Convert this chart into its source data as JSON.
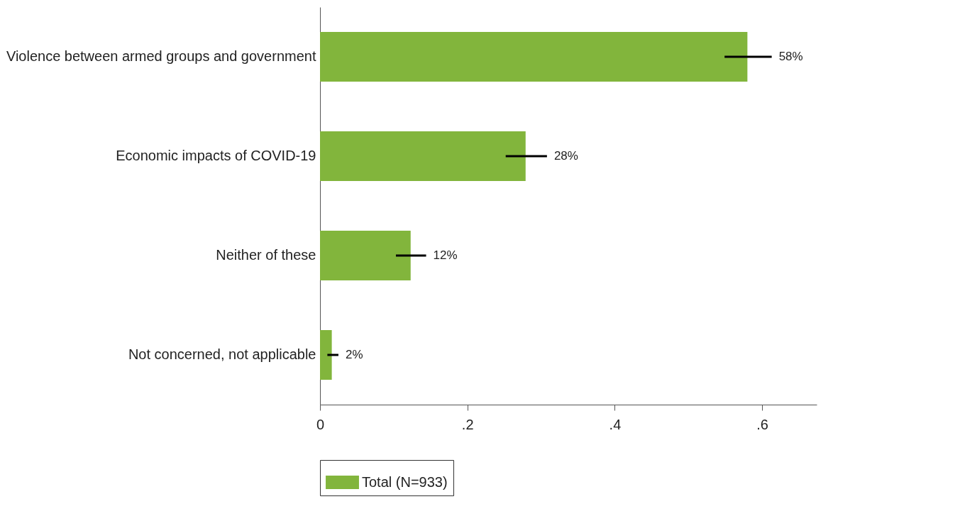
{
  "chart_data": {
    "type": "bar",
    "orientation": "horizontal",
    "categories": [
      "Violence between armed groups and government",
      "Economic impacts of COVID-19",
      "Neither of these",
      "Not concerned, not applicable"
    ],
    "series": [
      {
        "name": "Total (N=933)",
        "color": "#82b53c",
        "values": [
          0.58,
          0.279,
          0.123,
          0.016
        ],
        "errors": [
          [
            0.549,
            0.613
          ],
          [
            0.252,
            0.308
          ],
          [
            0.103,
            0.144
          ],
          [
            0.01,
            0.025
          ]
        ],
        "value_labels": [
          "58%",
          "28%",
          "12%",
          "2%"
        ]
      }
    ],
    "xlim": [
      0,
      0.674
    ],
    "xticks": [
      0,
      {
        "value": 0.2,
        "label": ".2"
      },
      {
        "value": 0.4,
        "label": ".4"
      },
      {
        "value": 0.6,
        "label": ".6"
      }
    ],
    "legend": "bottom",
    "grid": false
  }
}
